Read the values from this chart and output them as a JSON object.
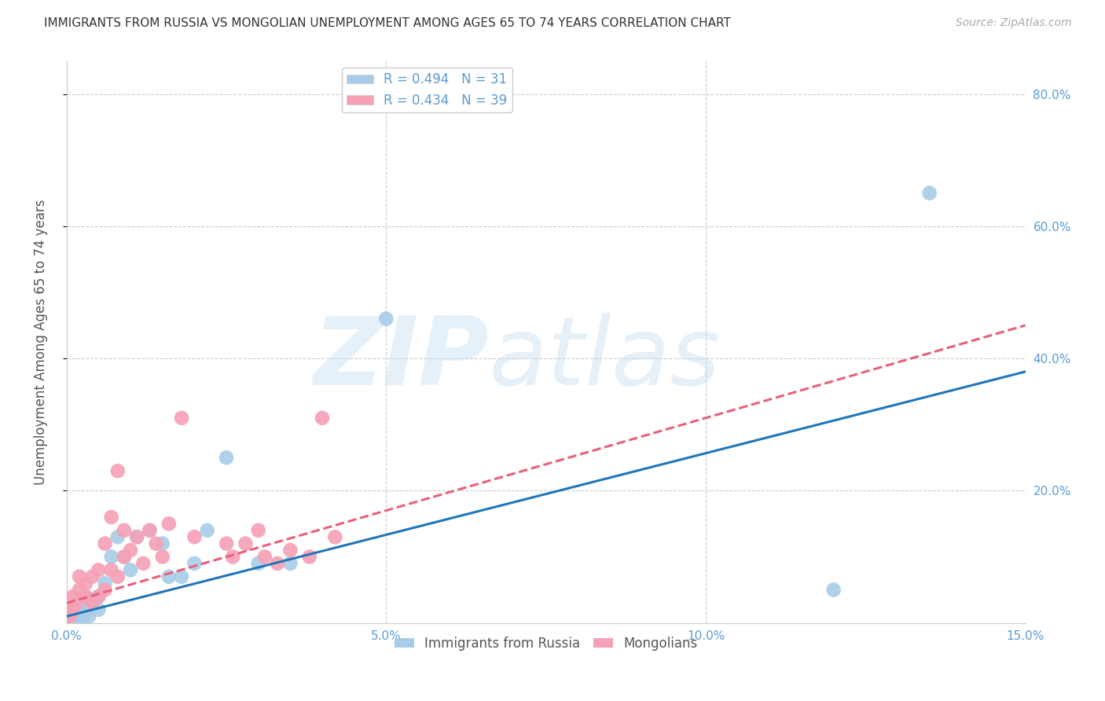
{
  "title": "IMMIGRANTS FROM RUSSIA VS MONGOLIAN UNEMPLOYMENT AMONG AGES 65 TO 74 YEARS CORRELATION CHART",
  "source": "Source: ZipAtlas.com",
  "ylabel": "Unemployment Among Ages 65 to 74 years",
  "xlim": [
    0.0,
    0.15
  ],
  "ylim": [
    0.0,
    0.85
  ],
  "xticks": [
    0.0,
    0.05,
    0.1,
    0.15
  ],
  "yticks": [
    0.2,
    0.4,
    0.6,
    0.8
  ],
  "xtick_labels": [
    "0.0%",
    "5.0%",
    "10.0%",
    "15.0%"
  ],
  "ytick_labels": [
    "20.0%",
    "40.0%",
    "60.0%",
    "80.0%"
  ],
  "background_color": "#ffffff",
  "watermark_text": "ZIPatlas",
  "series": [
    {
      "name": "Immigrants from Russia",
      "R": 0.494,
      "N": 31,
      "color": "#a8cce8",
      "line_color": "#2176b8",
      "line_style": "solid",
      "x": [
        0.0005,
        0.001,
        0.001,
        0.0015,
        0.002,
        0.002,
        0.0025,
        0.003,
        0.003,
        0.0035,
        0.004,
        0.005,
        0.005,
        0.006,
        0.007,
        0.008,
        0.009,
        0.01,
        0.011,
        0.013,
        0.015,
        0.016,
        0.018,
        0.02,
        0.022,
        0.025,
        0.03,
        0.035,
        0.05,
        0.12,
        0.135
      ],
      "y": [
        0.005,
        0.01,
        0.02,
        0.005,
        0.01,
        0.02,
        0.005,
        0.02,
        0.04,
        0.01,
        0.03,
        0.04,
        0.02,
        0.06,
        0.1,
        0.13,
        0.1,
        0.08,
        0.13,
        0.14,
        0.12,
        0.07,
        0.07,
        0.09,
        0.14,
        0.25,
        0.09,
        0.09,
        0.46,
        0.05,
        0.65
      ],
      "trend_x": [
        0.0,
        0.15
      ],
      "trend_y": [
        0.01,
        0.38
      ]
    },
    {
      "name": "Mongolians",
      "R": 0.434,
      "N": 39,
      "color": "#f5a0b5",
      "line_color": "#e8607a",
      "line_style": "dashed",
      "x": [
        0.0005,
        0.001,
        0.001,
        0.0015,
        0.002,
        0.002,
        0.003,
        0.003,
        0.004,
        0.004,
        0.005,
        0.005,
        0.006,
        0.006,
        0.007,
        0.007,
        0.008,
        0.008,
        0.009,
        0.009,
        0.01,
        0.011,
        0.012,
        0.013,
        0.014,
        0.015,
        0.016,
        0.018,
        0.02,
        0.025,
        0.026,
        0.028,
        0.03,
        0.031,
        0.033,
        0.035,
        0.038,
        0.04,
        0.042
      ],
      "y": [
        0.01,
        0.02,
        0.04,
        0.03,
        0.05,
        0.07,
        0.04,
        0.06,
        0.03,
        0.07,
        0.04,
        0.08,
        0.05,
        0.12,
        0.08,
        0.16,
        0.07,
        0.23,
        0.1,
        0.14,
        0.11,
        0.13,
        0.09,
        0.14,
        0.12,
        0.1,
        0.15,
        0.31,
        0.13,
        0.12,
        0.1,
        0.12,
        0.14,
        0.1,
        0.09,
        0.11,
        0.1,
        0.31,
        0.13
      ],
      "trend_x": [
        0.0,
        0.15
      ],
      "trend_y": [
        0.03,
        0.45
      ]
    }
  ]
}
